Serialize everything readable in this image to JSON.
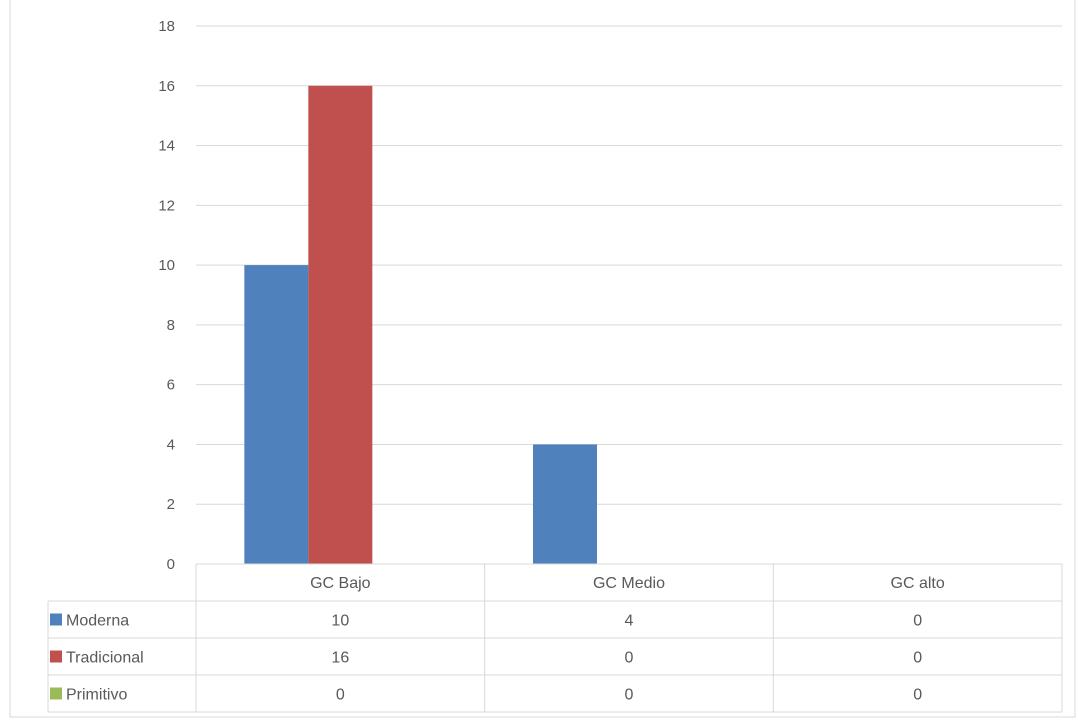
{
  "chart_data": {
    "type": "bar",
    "categories": [
      "GC Bajo",
      "GC Medio",
      "GC alto"
    ],
    "series": [
      {
        "name": "Moderna",
        "values": [
          10,
          4,
          0
        ],
        "color": "#4F81BD"
      },
      {
        "name": "Tradicional",
        "values": [
          16,
          0,
          0
        ],
        "color": "#C0504D"
      },
      {
        "name": "Primitivo",
        "values": [
          0,
          0,
          0
        ],
        "color": "#9BBB59"
      }
    ],
    "ylim": [
      0,
      18
    ],
    "yticks": [
      0,
      2,
      4,
      6,
      8,
      10,
      12,
      14,
      16,
      18
    ],
    "grid": true,
    "legend": "data-table"
  }
}
